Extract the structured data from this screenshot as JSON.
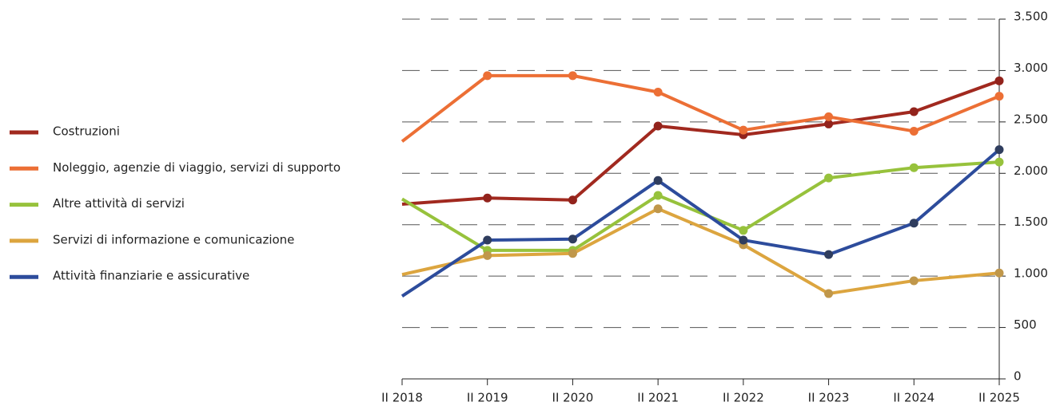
{
  "chart_data": {
    "type": "line",
    "categories": [
      "II 2018",
      "II 2019",
      "II 2020",
      "II 2021",
      "II 2022",
      "II 2023",
      "II 2024",
      "II 2025"
    ],
    "series": [
      {
        "name": "Costruzioni",
        "color": "#a1291f",
        "marker_color": "#92231c",
        "values": [
          1700,
          1760,
          1740,
          2460,
          2375,
          2480,
          2600,
          2900
        ]
      },
      {
        "name": "Noleggio, agenzie di viaggio, servizi di supporto",
        "color": "#ec6f35",
        "marker_color": "#ec6f35",
        "values": [
          2310,
          2950,
          2950,
          2790,
          2420,
          2550,
          2410,
          2750
        ]
      },
      {
        "name": "Altre attività di servizi",
        "color": "#97c23c",
        "marker_color": "#97c23c",
        "values": [
          1750,
          1250,
          1250,
          1785,
          1445,
          1955,
          2055,
          2110
        ]
      },
      {
        "name": "Servizi di informazione e comunicazione",
        "color": "#dca53f",
        "marker_color": "#c0974a",
        "values": [
          1015,
          1200,
          1220,
          1655,
          1305,
          830,
          955,
          1030
        ]
      },
      {
        "name": "Attività finanziarie e assicurative",
        "color": "#2d4c9c",
        "marker_color": "#2f3d5e",
        "values": [
          805,
          1350,
          1360,
          1930,
          1350,
          1210,
          1515,
          2230
        ]
      }
    ],
    "ylim": [
      0,
      3500
    ],
    "yticks": [
      0,
      500,
      {
        "value": 1000,
        "label": "1.000"
      },
      {
        "value": 1500,
        "label": "1.500"
      },
      {
        "value": 2000,
        "label": "2.000"
      },
      {
        "value": 2500,
        "label": "2.500"
      },
      {
        "value": 3000,
        "label": "3.000"
      },
      {
        "value": 3500,
        "label": "3.500"
      }
    ],
    "grid": true,
    "legend": "left"
  }
}
